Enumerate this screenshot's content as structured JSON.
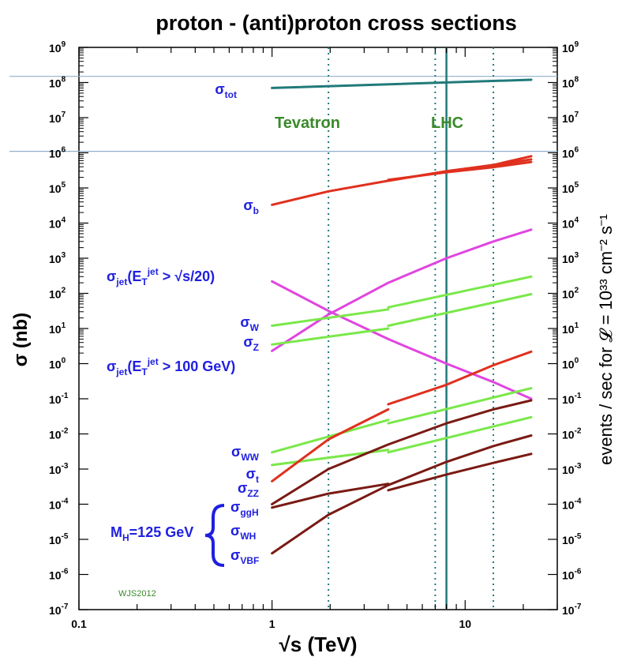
{
  "chart_data": {
    "type": "line",
    "title": "proton - (anti)proton cross sections",
    "xlabel": "√s  (TeV)",
    "ylabel": "σ  (nb)",
    "ylabel_right": "events / sec for 𝓛 = 10³³ cm⁻² s⁻¹",
    "xscale": "log",
    "yscale": "log",
    "xlim": [
      0.1,
      30
    ],
    "ylim": [
      1e-07,
      1000000000.0
    ],
    "x_ticks": [
      {
        "value": 0.1,
        "label": "0.1"
      },
      {
        "value": 1,
        "label": "1"
      },
      {
        "value": 10,
        "label": "10"
      }
    ],
    "y_ticks": [
      {
        "exp": 9,
        "base": "10",
        "sup": "9"
      },
      {
        "exp": 8,
        "base": "10",
        "sup": "8"
      },
      {
        "exp": 7,
        "base": "10",
        "sup": "7"
      },
      {
        "exp": 6,
        "base": "10",
        "sup": "6"
      },
      {
        "exp": 5,
        "base": "10",
        "sup": "5"
      },
      {
        "exp": 4,
        "base": "10",
        "sup": "4"
      },
      {
        "exp": 3,
        "base": "10",
        "sup": "3"
      },
      {
        "exp": 2,
        "base": "10",
        "sup": "2"
      },
      {
        "exp": 1,
        "base": "10",
        "sup": "1"
      },
      {
        "exp": 0,
        "base": "10",
        "sup": "0"
      },
      {
        "exp": -1,
        "base": "10",
        "sup": "-1"
      },
      {
        "exp": -2,
        "base": "10",
        "sup": "-2"
      },
      {
        "exp": -3,
        "base": "10",
        "sup": "-3"
      },
      {
        "exp": -4,
        "base": "10",
        "sup": "-4"
      },
      {
        "exp": -5,
        "base": "10",
        "sup": "-5"
      },
      {
        "exp": -6,
        "base": "10",
        "sup": "-6"
      },
      {
        "exp": -7,
        "base": "10",
        "sup": "-7"
      }
    ],
    "colliders": [
      {
        "label": "Tevatron",
        "x": 1.96,
        "color": "#3a8a2a"
      },
      {
        "label": "LHC",
        "x": 8,
        "color": "#3a8a2a"
      }
    ],
    "energy_markers": [
      1.96,
      7,
      8,
      14
    ],
    "reference_lines_y": [
      150000000.0,
      1100000.0
    ],
    "series": [
      {
        "label": "σ",
        "sub": "tot",
        "color": "#217a7a",
        "segments": [
          [
            [
              1,
              70000000.0
            ],
            [
              22,
              120000000.0
            ]
          ]
        ]
      },
      {
        "label": "σ",
        "sub": "b",
        "color": "#e0301e",
        "segments": [
          [
            [
              1,
              33000.0
            ],
            [
              1.96,
              80000.0
            ],
            [
              4,
              160000.0
            ],
            [
              8,
              300000.0
            ],
            [
              14,
              450000.0
            ],
            [
              22,
              800000.0
            ]
          ]
        ]
      },
      {
        "label": "σ",
        "sub": "",
        "color": "#e0301e",
        "segments": [
          [
            [
              4,
              170000.0
            ],
            [
              8,
              280000.0
            ],
            [
              14,
              390000.0
            ],
            [
              22,
              550000.0
            ]
          ]
        ]
      },
      {
        "label": "σ",
        "sub": "",
        "color": "#e0301e",
        "segments": [
          [
            [
              4,
              160000.0
            ],
            [
              8,
              300000.0
            ],
            [
              14,
              440000.0
            ],
            [
              22,
              650000.0
            ]
          ]
        ]
      },
      {
        "label": "σ",
        "sub": "jet",
        "extra": "(E",
        "extra_sub": "T",
        "extra_sup": "jet",
        "extra_tail": " > √s/20)",
        "color": "#e045e0",
        "segments": [
          [
            [
              1,
              220.0
            ],
            [
              2,
              30
            ],
            [
              4,
              5
            ],
            [
              8,
              1
            ],
            [
              14,
              0.3
            ],
            [
              22,
              0.1
            ]
          ]
        ]
      },
      {
        "label": "σ",
        "sub": "jet",
        "extra": "(E",
        "extra_sub": "T",
        "extra_sup": "jet",
        "extra_tail": " > 100 GeV)",
        "color": "#e045e0",
        "segments": [
          [
            [
              1,
              2.3
            ],
            [
              1.96,
              25
            ],
            [
              4,
              200.0
            ],
            [
              8,
              1000.0
            ],
            [
              14,
              3000.0
            ],
            [
              22,
              6500.0
            ]
          ]
        ]
      },
      {
        "label": "σ",
        "sub": "W",
        "color": "#7ae84a",
        "segments": [
          [
            [
              1,
              12
            ],
            [
              4,
              35
            ]
          ],
          [
            [
              4,
              40
            ],
            [
              22,
              300.0
            ]
          ]
        ]
      },
      {
        "label": "σ",
        "sub": "Z",
        "color": "#7ae84a",
        "segments": [
          [
            [
              1,
              3.5
            ],
            [
              4,
              10
            ]
          ],
          [
            [
              4,
              12
            ],
            [
              22,
              95
            ]
          ]
        ]
      },
      {
        "label": "σ",
        "sub": "WW",
        "color": "#7ae84a",
        "segments": [
          [
            [
              1,
              0.003
            ],
            [
              4,
              0.025
            ]
          ],
          [
            [
              4,
              0.02
            ],
            [
              22,
              0.2
            ]
          ]
        ]
      },
      {
        "label": "σ",
        "sub": "ZZ",
        "color": "#7ae84a",
        "segments": [
          [
            [
              1,
              0.0013
            ],
            [
              4,
              0.0035
            ]
          ],
          [
            [
              4,
              0.003
            ],
            [
              22,
              0.03
            ]
          ]
        ]
      },
      {
        "label": "σ",
        "sub": "t",
        "color": "#e0301e",
        "segments": [
          [
            [
              1,
              0.00045
            ],
            [
              1.96,
              0.007
            ],
            [
              4,
              0.05
            ]
          ],
          [
            [
              4,
              0.07
            ],
            [
              8,
              0.25
            ],
            [
              14,
              0.9
            ],
            [
              22,
              2.2
            ]
          ]
        ]
      },
      {
        "label": "σ",
        "sub": "ggH",
        "color": "#7a1a14",
        "segments": [
          [
            [
              1,
              0.0001
            ],
            [
              1.96,
              0.001
            ],
            [
              4,
              0.005
            ],
            [
              8,
              0.02
            ],
            [
              14,
              0.05
            ],
            [
              22,
              0.09
            ]
          ]
        ]
      },
      {
        "label": "σ",
        "sub": "WH",
        "color": "#7a1a14",
        "segments": [
          [
            [
              1,
              8e-05
            ],
            [
              1.96,
              0.0002
            ],
            [
              4,
              0.00038
            ]
          ],
          [
            [
              4,
              0.00025
            ],
            [
              8,
              0.0007
            ],
            [
              14,
              0.0015
            ],
            [
              22,
              0.0027
            ]
          ]
        ]
      },
      {
        "label": "σ",
        "sub": "VBF",
        "color": "#7a1a14",
        "segments": [
          [
            [
              1,
              4e-06
            ],
            [
              1.96,
              5e-05
            ],
            [
              4,
              0.00035
            ],
            [
              8,
              0.0016
            ],
            [
              14,
              0.0045
            ],
            [
              22,
              0.009
            ]
          ]
        ]
      }
    ],
    "annotations": {
      "mh_label": "M",
      "mh_sub": "H",
      "mh_tail": "=125 GeV",
      "credit": "WJS2012"
    }
  },
  "colors": {
    "label_blue": "#1f1fe0",
    "grid_teal": "#217a7a",
    "ref_line": "#8fb0cc",
    "credit_green": "#3a8a2a"
  }
}
